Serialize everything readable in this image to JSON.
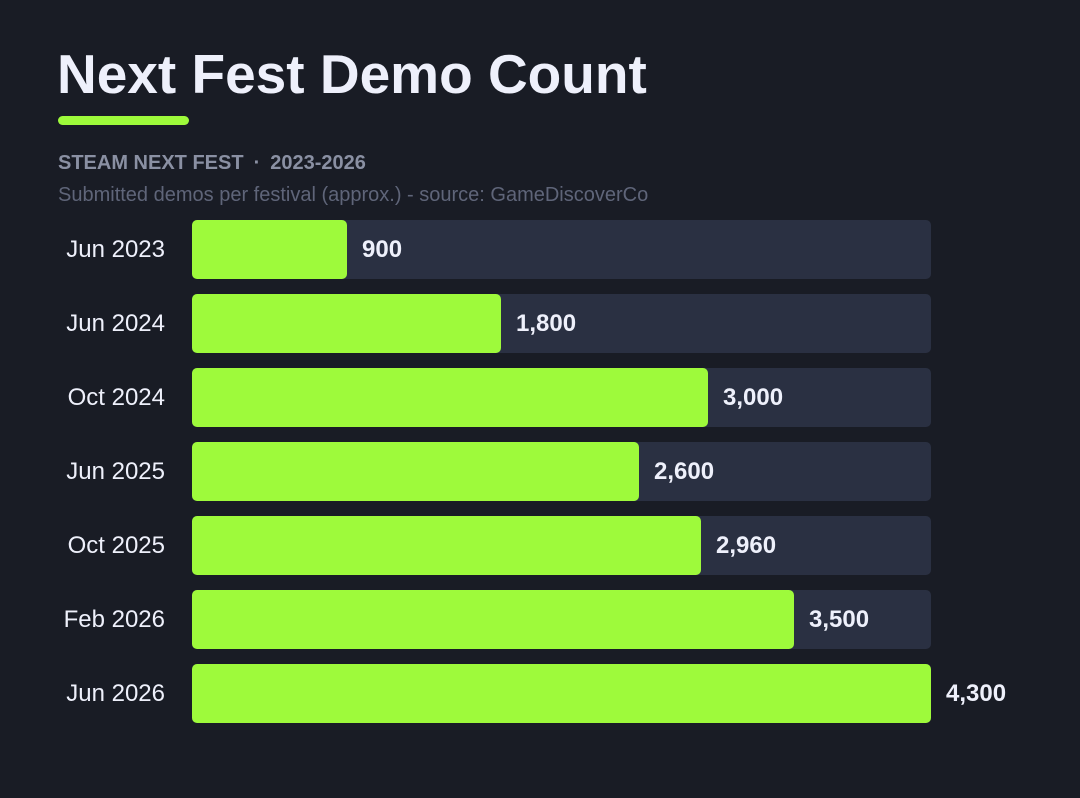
{
  "header": {
    "title": "Next Fest Demo Count",
    "kicker_left": "STEAM NEXT FEST",
    "kicker_sep": "·",
    "kicker_right": "2023-2026",
    "subtitle": "Submitted demos per festival (approx.) - source: GameDiscoverCo"
  },
  "colors": {
    "background": "#191c25",
    "bar": "#9efa3b",
    "track": "#2a3042",
    "accent": "#9efa3b"
  },
  "chart_data": {
    "type": "bar",
    "orientation": "horizontal",
    "title": "Next Fest Demo Count",
    "subtitle": "Submitted demos per festival (approx.) - source: GameDiscoverCo",
    "categories": [
      "Jun 2023",
      "Jun 2024",
      "Oct 2024",
      "Jun 2025",
      "Oct 2025",
      "Feb 2026",
      "Jun 2026"
    ],
    "values": [
      900,
      1800,
      3000,
      2600,
      2960,
      3500,
      4300
    ],
    "value_labels": [
      "900",
      "1,800",
      "3,000",
      "2,600",
      "2,960",
      "3,500",
      "4,300"
    ],
    "xlim": [
      0,
      4300
    ],
    "grid": false,
    "legend": "none"
  }
}
